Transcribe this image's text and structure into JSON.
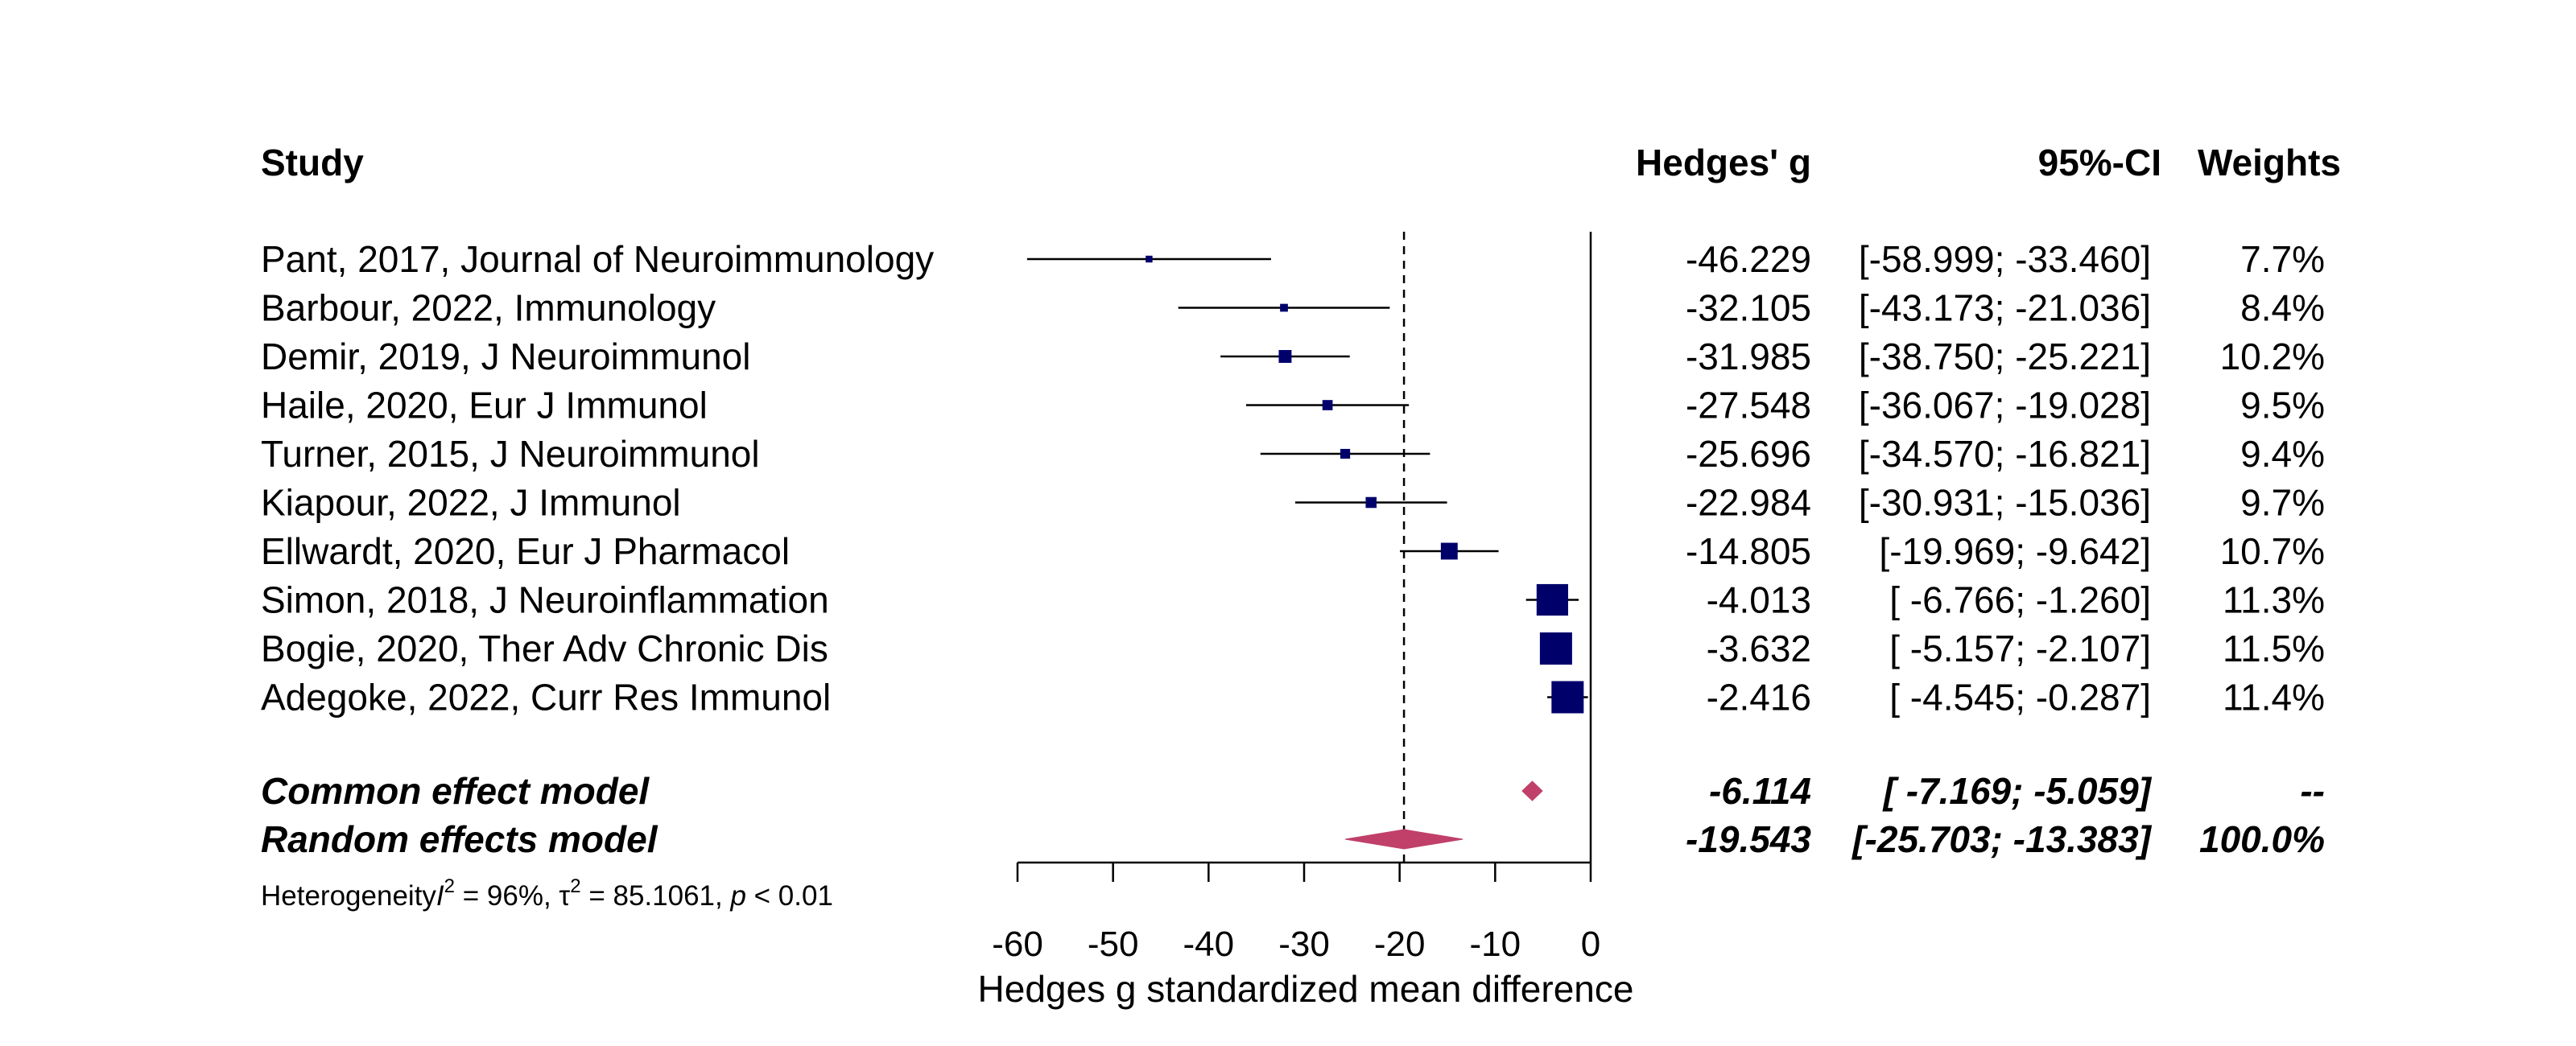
{
  "colors": {
    "study_square": "#00006b",
    "diamond": "#c0406a",
    "line": "#000000",
    "ref_line": "#000000"
  },
  "headers": {
    "study": "Study",
    "effect": "Hedges' g",
    "ci": "95%-CI",
    "weight": "Weights"
  },
  "heterogeneity": {
    "prefix": "Heterogeneity",
    "i2_symbol": "I",
    "i2_exp": "2",
    "i2_value": " = 96%, ",
    "tau_symbol": "τ",
    "tau_exp": "2",
    "tau_value": " = 85.1061, ",
    "p_symbol": "p",
    "p_value": " < 0.01"
  },
  "chart_data": {
    "type": "forest",
    "xlabel": "Hedges g standardized mean difference",
    "xlim": [
      -60,
      0
    ],
    "ticks": [
      -60,
      -50,
      -40,
      -30,
      -20,
      -10,
      0
    ],
    "tick_labels": [
      "-60",
      "-50",
      "-40",
      "-30",
      "-20",
      "-10",
      "0"
    ],
    "reference_line": -19.543,
    "studies": [
      {
        "label": "Pant, 2017, Journal of Neuroimmunology",
        "g": -46.229,
        "lo": -58.999,
        "hi": -33.46,
        "g_text": "-46.229",
        "ci_text": "[-58.999; -33.460]",
        "weight_text": "7.7%",
        "weight": 7.7
      },
      {
        "label": "Barbour, 2022, Immunology",
        "g": -32.105,
        "lo": -43.173,
        "hi": -21.036,
        "g_text": "-32.105",
        "ci_text": "[-43.173; -21.036]",
        "weight_text": "8.4%",
        "weight": 8.4
      },
      {
        "label": "Demir, 2019, J Neuroimmunol",
        "g": -31.985,
        "lo": -38.75,
        "hi": -25.221,
        "g_text": "-31.985",
        "ci_text": "[-38.750; -25.221]",
        "weight_text": "10.2%",
        "weight": 10.2
      },
      {
        "label": "Haile, 2020, Eur J Immunol",
        "g": -27.548,
        "lo": -36.067,
        "hi": -19.028,
        "g_text": "-27.548",
        "ci_text": "[-36.067; -19.028]",
        "weight_text": "9.5%",
        "weight": 9.5
      },
      {
        "label": "Turner, 2015, J Neuroimmunol",
        "g": -25.696,
        "lo": -34.57,
        "hi": -16.821,
        "g_text": "-25.696",
        "ci_text": "[-34.570; -16.821]",
        "weight_text": "9.4%",
        "weight": 9.4
      },
      {
        "label": "Kiapour, 2022, J Immunol",
        "g": -22.984,
        "lo": -30.931,
        "hi": -15.036,
        "g_text": "-22.984",
        "ci_text": "[-30.931; -15.036]",
        "weight_text": "9.7%",
        "weight": 9.7
      },
      {
        "label": "Ellwardt, 2020, Eur J Pharmacol",
        "g": -14.805,
        "lo": -19.969,
        "hi": -9.642,
        "g_text": "-14.805",
        "ci_text": "[-19.969;  -9.642]",
        "weight_text": "10.7%",
        "weight": 10.7
      },
      {
        "label": "Simon, 2018, J Neuroinflammation",
        "g": -4.013,
        "lo": -6.766,
        "hi": -1.26,
        "g_text": "-4.013",
        "ci_text": "[ -6.766;  -1.260]",
        "weight_text": "11.3%",
        "weight": 11.3
      },
      {
        "label": "Bogie, 2020, Ther Adv Chronic Dis",
        "g": -3.632,
        "lo": -5.157,
        "hi": -2.107,
        "g_text": "-3.632",
        "ci_text": "[ -5.157;  -2.107]",
        "weight_text": "11.5%",
        "weight": 11.5
      },
      {
        "label": "Adegoke, 2022, Curr Res Immunol",
        "g": -2.416,
        "lo": -4.545,
        "hi": -0.287,
        "g_text": "-2.416",
        "ci_text": "[ -4.545;  -0.287]",
        "weight_text": "11.4%",
        "weight": 11.4
      }
    ],
    "pooled": [
      {
        "label": "Common effect model",
        "g": -6.114,
        "lo": -7.169,
        "hi": -5.059,
        "g_text": "-6.114",
        "ci_text": "[ -7.169;  -5.059]",
        "weight_text": "--"
      },
      {
        "label": "Random effects model",
        "g": -19.543,
        "lo": -25.703,
        "hi": -13.383,
        "g_text": "-19.543",
        "ci_text": "[-25.703; -13.383]",
        "weight_text": "100.0%"
      }
    ]
  }
}
